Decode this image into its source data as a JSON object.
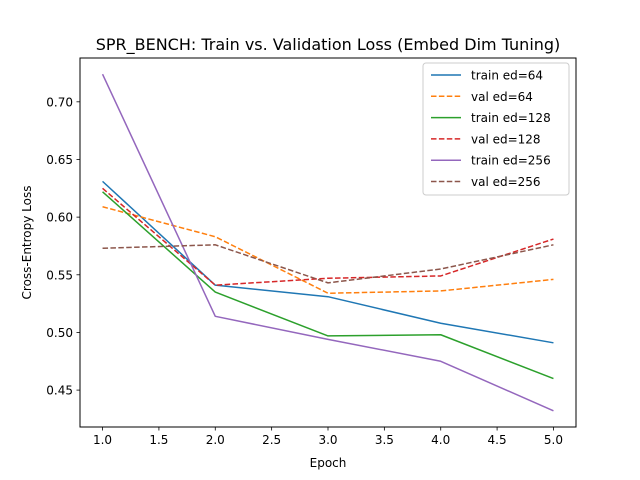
{
  "chart_data": {
    "type": "line",
    "title": "SPR_BENCH: Train vs. Validation Loss (Embed Dim Tuning)",
    "xlabel": "Epoch",
    "ylabel": "Cross-Entropy Loss",
    "xlim": [
      0.8,
      5.2
    ],
    "ylim": [
      0.418,
      0.738
    ],
    "xticks": [
      "1.0",
      "1.5",
      "2.0",
      "2.5",
      "3.0",
      "3.5",
      "4.0",
      "4.5",
      "5.0"
    ],
    "yticks": [
      "0.45",
      "0.50",
      "0.55",
      "0.60",
      "0.65",
      "0.70"
    ],
    "grid": false,
    "legend_position": "top-right",
    "x": [
      1,
      2,
      3,
      4,
      5
    ],
    "series": [
      {
        "name": "train ed=64",
        "values": [
          0.631,
          0.541,
          0.531,
          0.508,
          0.491
        ],
        "color": "#1f77b4",
        "dashed": false
      },
      {
        "name": "val ed=64",
        "values": [
          0.609,
          0.583,
          0.534,
          0.536,
          0.546
        ],
        "color": "#ff7f0e",
        "dashed": true
      },
      {
        "name": "train ed=128",
        "values": [
          0.622,
          0.535,
          0.497,
          0.498,
          0.46
        ],
        "color": "#2ca02c",
        "dashed": false
      },
      {
        "name": "val ed=128",
        "values": [
          0.625,
          0.541,
          0.547,
          0.549,
          0.581
        ],
        "color": "#d62728",
        "dashed": true
      },
      {
        "name": "train ed=256",
        "values": [
          0.724,
          0.514,
          0.494,
          0.475,
          0.432
        ],
        "color": "#9467bd",
        "dashed": false
      },
      {
        "name": "val ed=256",
        "values": [
          0.573,
          0.576,
          0.543,
          0.555,
          0.576
        ],
        "color": "#8c564b",
        "dashed": true
      }
    ]
  }
}
